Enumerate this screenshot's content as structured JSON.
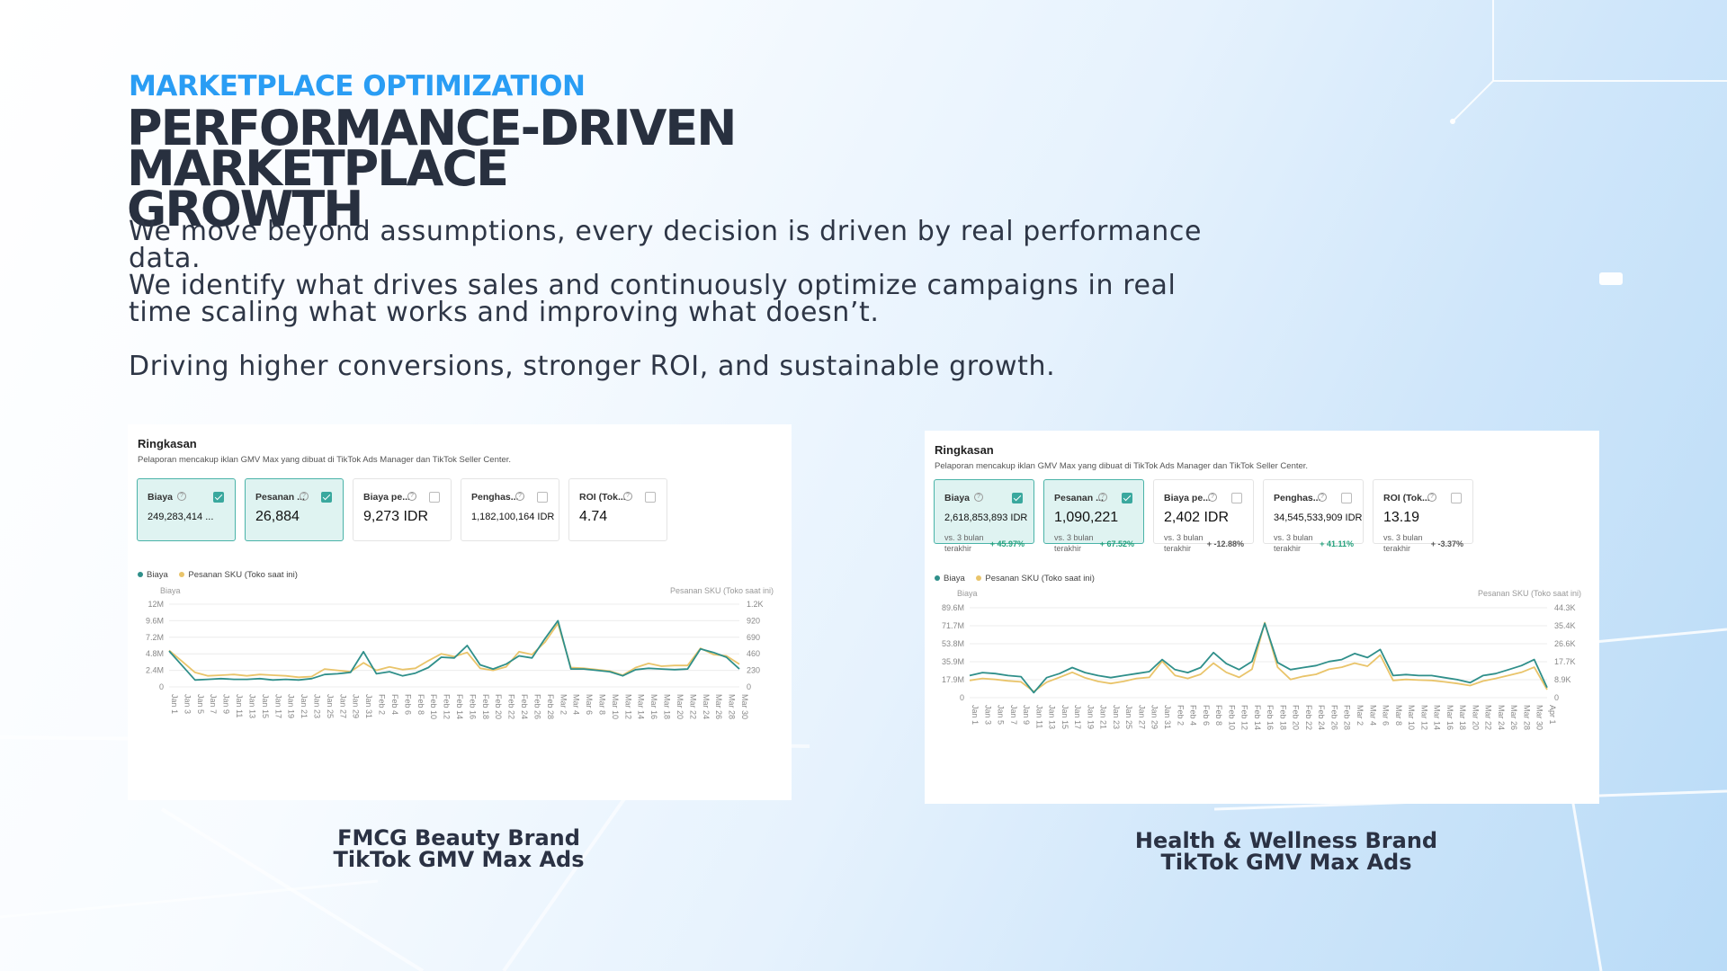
{
  "slide": {
    "eyebrow": "MARKETPLACE OPTIMIZATION",
    "headline_line1": "PERFORMANCE-DRIVEN MARKETPLACE",
    "headline_line2": "GROWTH",
    "paragraph1_line1": "We move beyond assumptions, every decision is driven by real performance",
    "paragraph1_line2": "data.",
    "paragraph2_line1": "We identify what drives sales and continuously optimize campaigns in real",
    "paragraph2_line2": "time  scaling what works and improving what doesn’t.",
    "paragraph3": "Driving higher conversions, stronger ROI, and sustainable growth."
  },
  "colors": {
    "accent": "#2a9df4",
    "series_cost": "#2f8f8a",
    "series_orders": "#e9c46a",
    "text_dark": "#28303f"
  },
  "panels": [
    {
      "title": "Ringkasan",
      "subtitle": "Pelaporan mencakup iklan GMV Max yang dibuat di TikTok Ads Manager dan TikTok Seller Center.",
      "caption_line1": "FMCG Beauty Brand",
      "caption_line2": "TikTok GMV Max Ads",
      "cards": [
        {
          "label": "Biaya",
          "value": "249,283,414 ...",
          "selected": true
        },
        {
          "label": "Pesanan ...",
          "value": "26,884",
          "selected": true
        },
        {
          "label": "Biaya pe...",
          "value": "9,273 IDR",
          "selected": false
        },
        {
          "label": "Penghas...",
          "value": "1,182,100,164 IDR",
          "selected": false
        },
        {
          "label": "ROI (Tok...",
          "value": "4.74",
          "selected": false
        }
      ],
      "legend": [
        "Biaya",
        "Pesanan SKU (Toko saat ini)"
      ],
      "axis_left_name": "Biaya",
      "axis_right_name": "Pesanan SKU (Toko saat ini)",
      "chart_data": {
        "type": "line",
        "x": [
          "Jan 1",
          "Jan 3",
          "Jan 5",
          "Jan 7",
          "Jan 9",
          "Jan 11",
          "Jan 13",
          "Jan 15",
          "Jan 17",
          "Jan 19",
          "Jan 21",
          "Jan 23",
          "Jan 25",
          "Jan 27",
          "Jan 29",
          "Jan 31",
          "Feb 2",
          "Feb 4",
          "Feb 6",
          "Feb 8",
          "Feb 10",
          "Feb 12",
          "Feb 14",
          "Feb 16",
          "Feb 18",
          "Feb 20",
          "Feb 22",
          "Feb 24",
          "Feb 26",
          "Feb 28",
          "Mar 2",
          "Mar 4",
          "Mar 6",
          "Mar 8",
          "Mar 10",
          "Mar 12",
          "Mar 14",
          "Mar 16",
          "Mar 18",
          "Mar 20",
          "Mar 22",
          "Mar 24",
          "Mar 26",
          "Mar 28",
          "Mar 30"
        ],
        "y_left_ticks": [
          "0",
          "2.4M",
          "4.8M",
          "7.2M",
          "9.6M",
          "12M"
        ],
        "y_right_ticks": [
          "0",
          "230",
          "460",
          "690",
          "920",
          "1.2K"
        ],
        "y_left_max": 12000000,
        "series": [
          {
            "name": "Biaya",
            "axis": "left",
            "values": [
              5200000,
              3100000,
              1000000,
              1100000,
              1200000,
              1100000,
              1100000,
              1200000,
              1000000,
              1100000,
              1000000,
              1200000,
              1800000,
              1900000,
              2100000,
              5100000,
              1900000,
              2200000,
              1600000,
              2000000,
              2800000,
              4300000,
              4200000,
              6000000,
              3200000,
              2600000,
              3300000,
              4500000,
              4200000,
              7000000,
              9600000,
              2600000,
              2600000,
              2400000,
              2200000,
              1600000,
              2500000,
              2700000,
              2600000,
              2500000,
              2600000,
              5500000,
              5000000,
              4300000,
              2600000
            ]
          },
          {
            "name": "Pesanan SKU (Toko saat ini)",
            "axis": "right",
            "values": [
              530,
              370,
              210,
              160,
              170,
              180,
              160,
              180,
              170,
              160,
              140,
              150,
              260,
              240,
              220,
              350,
              240,
              290,
              250,
              270,
              380,
              480,
              440,
              500,
              270,
              240,
              290,
              510,
              470,
              650,
              920,
              280,
              270,
              250,
              230,
              170,
              280,
              340,
              300,
              310,
              310,
              560,
              470,
              450,
              330
            ]
          }
        ]
      }
    },
    {
      "title": "Ringkasan",
      "subtitle": "Pelaporan mencakup iklan GMV Max yang dibuat di TikTok Ads Manager dan TikTok Seller Center.",
      "caption_line1": "Health & Wellness Brand",
      "caption_line2": "TikTok GMV Max Ads",
      "cards": [
        {
          "label": "Biaya",
          "value": "2,618,853,893 IDR",
          "selected": true,
          "comparison": "vs. 3 bulan terakhir",
          "delta": "+ 45.97%",
          "trend": "up"
        },
        {
          "label": "Pesanan ...",
          "value": "1,090,221",
          "selected": true,
          "comparison": "vs. 3 bulan terakhir",
          "delta": "+ 67.52%",
          "trend": "up"
        },
        {
          "label": "Biaya pe...",
          "value": "2,402 IDR",
          "selected": false,
          "comparison": "vs. 3 bulan terakhir",
          "delta": "+ -12.88%",
          "trend": "down"
        },
        {
          "label": "Penghas...",
          "value": "34,545,533,909 IDR",
          "selected": false,
          "comparison": "vs. 3 bulan terakhir",
          "delta": "+ 41.11%",
          "trend": "up"
        },
        {
          "label": "ROI (Tok...",
          "value": "13.19",
          "selected": false,
          "comparison": "vs. 3 bulan terakhir",
          "delta": "+ -3.37%",
          "trend": "down"
        }
      ],
      "legend": [
        "Biaya",
        "Pesanan SKU (Toko saat ini)"
      ],
      "axis_left_name": "Biaya",
      "axis_right_name": "Pesanan SKU (Toko saat ini)",
      "chart_data": {
        "type": "line",
        "x": [
          "Jan 1",
          "Jan 3",
          "Jan 5",
          "Jan 7",
          "Jan 9",
          "Jan 11",
          "Jan 13",
          "Jan 15",
          "Jan 17",
          "Jan 19",
          "Jan 21",
          "Jan 23",
          "Jan 25",
          "Jan 27",
          "Jan 29",
          "Jan 31",
          "Feb 2",
          "Feb 4",
          "Feb 6",
          "Feb 8",
          "Feb 10",
          "Feb 12",
          "Feb 14",
          "Feb 16",
          "Feb 18",
          "Feb 20",
          "Feb 22",
          "Feb 24",
          "Feb 26",
          "Feb 28",
          "Mar 2",
          "Mar 4",
          "Mar 6",
          "Mar 8",
          "Mar 10",
          "Mar 12",
          "Mar 14",
          "Mar 16",
          "Mar 18",
          "Mar 20",
          "Mar 22",
          "Mar 24",
          "Mar 26",
          "Mar 28",
          "Mar 30",
          "Apr 1"
        ],
        "y_left_ticks": [
          "0",
          "17.9M",
          "35.9M",
          "53.8M",
          "71.7M",
          "89.6M"
        ],
        "y_right_ticks": [
          "0",
          "8.9K",
          "17.7K",
          "26.6K",
          "35.4K",
          "44.3K"
        ],
        "y_left_max": 89600000,
        "series": [
          {
            "name": "Biaya",
            "axis": "left",
            "values": [
              22000000,
              25000000,
              24000000,
              22000000,
              21000000,
              5000000,
              20000000,
              24000000,
              30000000,
              25000000,
              22000000,
              20000000,
              22000000,
              24000000,
              26000000,
              38000000,
              28000000,
              25000000,
              30000000,
              45000000,
              34000000,
              28000000,
              36000000,
              74000000,
              35000000,
              28000000,
              30000000,
              32000000,
              36000000,
              38000000,
              44000000,
              40000000,
              48000000,
              22000000,
              23000000,
              22000000,
              22000000,
              20000000,
              18000000,
              15000000,
              22000000,
              24000000,
              28000000,
              32000000,
              38000000,
              10000000
            ]
          },
          {
            "name": "Pesanan SKU (Toko saat ini)",
            "axis": "right",
            "values": [
              8500,
              9500,
              9000,
              8300,
              7800,
              3000,
              7600,
              10000,
              12500,
              9800,
              8000,
              7000,
              8000,
              9500,
              10000,
              18000,
              11000,
              9500,
              11500,
              17000,
              12500,
              10000,
              14000,
              37000,
              15000,
              9000,
              10500,
              11500,
              14000,
              15000,
              17000,
              15500,
              21000,
              8500,
              9000,
              8700,
              8500,
              7800,
              7000,
              6000,
              8200,
              9500,
              11000,
              12500,
              15000,
              4000
            ]
          }
        ]
      }
    }
  ]
}
